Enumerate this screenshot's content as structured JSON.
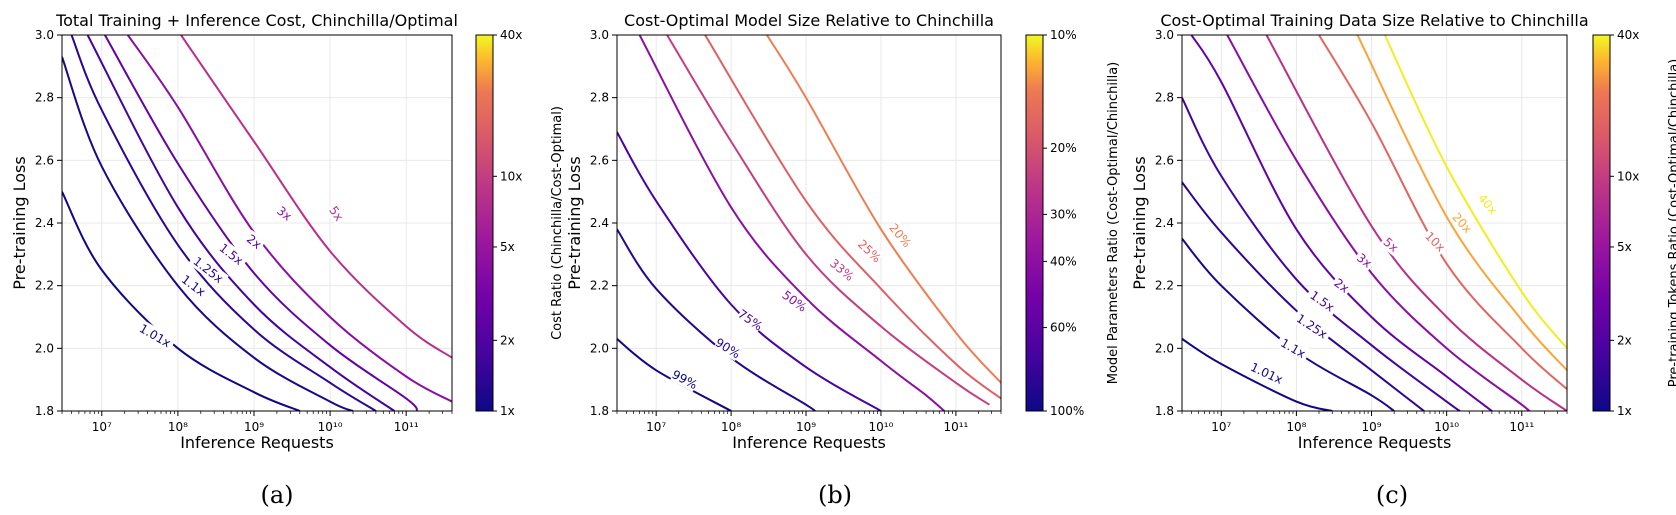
{
  "chart_data": [
    {
      "type": "contour",
      "title": "Total Training + Inference Cost, Chinchilla/Optimal",
      "xlabel": "Inference Requests",
      "ylabel": "Pre-training Loss",
      "x_scale": "log",
      "xlim": [
        3000000,
        400000000000
      ],
      "ylim": [
        1.8,
        3.0
      ],
      "x_ticks": [
        10000000,
        100000000,
        1000000000,
        10000000000,
        100000000000
      ],
      "x_tick_labels": [
        "10^7",
        "10^8",
        "10^9",
        "10^10",
        "10^11"
      ],
      "y_ticks": [
        1.8,
        2.0,
        2.2,
        2.4,
        2.6,
        2.8,
        3.0
      ],
      "y_tick_labels": [
        "1.8",
        "2.0",
        "2.2",
        "2.4",
        "2.6",
        "2.8",
        "3.0"
      ],
      "grid": true,
      "colorbar": {
        "label": "Cost Ratio (Chinchilla/Cost-Optimal)",
        "scale": "log",
        "ticks": [
          1,
          2,
          5,
          10,
          40
        ],
        "tick_labels": [
          "1x",
          "2x",
          "5x",
          "10x",
          "40x"
        ],
        "direction": "up"
      },
      "levels": [
        {
          "label": "1.01x",
          "value": 1.01,
          "curve": [
            [
              3000000,
              2.5
            ],
            [
              10000000,
              2.25
            ],
            [
              100000000,
              2.0
            ],
            [
              1000000000,
              1.86
            ],
            [
              4000000000,
              1.8
            ]
          ],
          "label_at": [
            50000000,
            2.04
          ],
          "label_angle": 30
        },
        {
          "label": "1.1x",
          "value": 1.1,
          "curve": [
            [
              3000000,
              2.93
            ],
            [
              10000000,
              2.58
            ],
            [
              100000000,
              2.2
            ],
            [
              1000000000,
              1.97
            ],
            [
              10000000000,
              1.83
            ],
            [
              20000000000,
              1.8
            ]
          ],
          "label_at": [
            160000000,
            2.2
          ],
          "label_angle": 37
        },
        {
          "label": "1.25x",
          "value": 1.25,
          "curve": [
            [
              4000000,
              3.0
            ],
            [
              10000000,
              2.76
            ],
            [
              100000000,
              2.33
            ],
            [
              1000000000,
              2.06
            ],
            [
              10000000000,
              1.89
            ],
            [
              40000000000,
              1.8
            ]
          ],
          "label_at": [
            250000000,
            2.25
          ],
          "label_angle": 38
        },
        {
          "label": "1.5x",
          "value": 1.5,
          "curve": [
            [
              6500000,
              3.0
            ],
            [
              100000000,
              2.45
            ],
            [
              1000000000,
              2.14
            ],
            [
              10000000000,
              1.94
            ],
            [
              70000000000,
              1.8
            ]
          ],
          "label_at": [
            500000000,
            2.3
          ],
          "label_angle": 38
        },
        {
          "label": "2x",
          "value": 2,
          "curve": [
            [
              11000000,
              3.0
            ],
            [
              100000000,
              2.59
            ],
            [
              1000000000,
              2.24
            ],
            [
              10000000000,
              2.01
            ],
            [
              100000000000,
              1.84
            ],
            [
              140000000000,
              1.8
            ]
          ],
          "label_at": [
            1000000000,
            2.34
          ],
          "label_angle": 38
        },
        {
          "label": "3x",
          "value": 3,
          "curve": [
            [
              22000000,
              3.0
            ],
            [
              100000000,
              2.77
            ],
            [
              1000000000,
              2.37
            ],
            [
              10000000000,
              2.1
            ],
            [
              100000000000,
              1.91
            ],
            [
              400000000000,
              1.83
            ]
          ],
          "label_at": [
            2500000000,
            2.43
          ],
          "label_angle": 38
        },
        {
          "label": "5x",
          "value": 5,
          "curve": [
            [
              110000000,
              3.0
            ],
            [
              1000000000,
              2.66
            ],
            [
              10000000000,
              2.31
            ],
            [
              100000000000,
              2.07
            ],
            [
              400000000000,
              1.97
            ]
          ],
          "label_at": [
            12000000000,
            2.43
          ],
          "label_angle": 55
        }
      ]
    },
    {
      "type": "contour",
      "title": "Cost-Optimal Model Size Relative to Chinchilla",
      "xlabel": "Inference Requests",
      "ylabel": "Pre-training Loss",
      "x_scale": "log",
      "xlim": [
        3000000,
        400000000000
      ],
      "ylim": [
        1.8,
        3.0
      ],
      "x_ticks": [
        10000000,
        100000000,
        1000000000,
        10000000000,
        100000000000
      ],
      "x_tick_labels": [
        "10^7",
        "10^8",
        "10^9",
        "10^10",
        "10^11"
      ],
      "y_ticks": [
        1.8,
        2.0,
        2.2,
        2.4,
        2.6,
        2.8,
        3.0
      ],
      "y_tick_labels": [
        "1.8",
        "2.0",
        "2.2",
        "2.4",
        "2.6",
        "2.8",
        "3.0"
      ],
      "grid": true,
      "colorbar": {
        "label": "Model Parameters Ratio (Cost-Optimal/Chinchilla)",
        "scale": "log",
        "ticks": [
          1.0,
          0.6,
          0.4,
          0.3,
          0.2,
          0.1
        ],
        "tick_labels": [
          "100%",
          "60%",
          "40%",
          "30%",
          "20%",
          "10%"
        ],
        "direction": "down"
      },
      "levels": [
        {
          "label": "99%",
          "value": 0.99,
          "curve": [
            [
              3000000,
              2.03
            ],
            [
              10000000,
              1.93
            ],
            [
              100000000,
              1.8
            ]
          ],
          "label_at": [
            24000000,
            1.9
          ],
          "label_angle": 28
        },
        {
          "label": "90%",
          "value": 0.9,
          "curve": [
            [
              3000000,
              2.38
            ],
            [
              10000000,
              2.19
            ],
            [
              100000000,
              1.97
            ],
            [
              1000000000,
              1.82
            ],
            [
              1300000000,
              1.8
            ]
          ],
          "label_at": [
            90000000,
            2.0
          ],
          "label_angle": 32
        },
        {
          "label": "75%",
          "value": 0.75,
          "curve": [
            [
              3000000,
              2.69
            ],
            [
              10000000,
              2.47
            ],
            [
              100000000,
              2.14
            ],
            [
              1000000000,
              1.94
            ],
            [
              10000000000,
              1.8
            ]
          ],
          "label_at": [
            180000000,
            2.09
          ],
          "label_angle": 35
        },
        {
          "label": "50%",
          "value": 0.5,
          "curve": [
            [
              6000000,
              3.0
            ],
            [
              100000000,
              2.45
            ],
            [
              1000000000,
              2.16
            ],
            [
              10000000000,
              1.96
            ],
            [
              40000000000,
              1.85
            ],
            [
              70000000000,
              1.8
            ]
          ],
          "label_at": [
            700000000,
            2.15
          ],
          "label_angle": 36
        },
        {
          "label": "33%",
          "value": 0.33,
          "curve": [
            [
              14000000,
              3.0
            ],
            [
              100000000,
              2.66
            ],
            [
              1000000000,
              2.3
            ],
            [
              10000000000,
              2.07
            ],
            [
              100000000000,
              1.89
            ],
            [
              280000000000,
              1.82
            ]
          ],
          "label_at": [
            3000000000,
            2.25
          ],
          "label_angle": 40
        },
        {
          "label": "25%",
          "value": 0.25,
          "curve": [
            [
              45000000,
              3.0
            ],
            [
              1000000000,
              2.47
            ],
            [
              10000000000,
              2.19
            ],
            [
              100000000000,
              1.95
            ],
            [
              400000000000,
              1.84
            ]
          ],
          "label_at": [
            7000000000,
            2.31
          ],
          "label_angle": 44
        },
        {
          "label": "20%",
          "value": 0.2,
          "curve": [
            [
              300000000,
              3.0
            ],
            [
              1000000000,
              2.8
            ],
            [
              10000000000,
              2.38
            ],
            [
              100000000000,
              2.05
            ],
            [
              400000000000,
              1.89
            ]
          ],
          "label_at": [
            18000000000,
            2.36
          ],
          "label_angle": 50
        }
      ]
    },
    {
      "type": "contour",
      "title": "Cost-Optimal Training Data Size Relative to Chinchilla",
      "xlabel": "Inference Requests",
      "ylabel": "Pre-training Loss",
      "x_scale": "log",
      "xlim": [
        3000000,
        400000000000
      ],
      "ylim": [
        1.8,
        3.0
      ],
      "x_ticks": [
        10000000,
        100000000,
        1000000000,
        10000000000,
        100000000000
      ],
      "x_tick_labels": [
        "10^7",
        "10^8",
        "10^9",
        "10^10",
        "10^11"
      ],
      "y_ticks": [
        1.8,
        2.0,
        2.2,
        2.4,
        2.6,
        2.8,
        3.0
      ],
      "y_tick_labels": [
        "1.8",
        "2.0",
        "2.2",
        "2.4",
        "2.6",
        "2.8",
        "3.0"
      ],
      "grid": true,
      "colorbar": {
        "label": "Pre-training Tokens Ratio (Cost-Optimal/Chinchilla)",
        "scale": "log",
        "ticks": [
          1,
          2,
          5,
          10,
          40
        ],
        "tick_labels": [
          "1x",
          "2x",
          "5x",
          "10x",
          "40x"
        ],
        "direction": "up"
      },
      "levels": [
        {
          "label": "1.01x",
          "value": 1.01,
          "curve": [
            [
              3000000,
              2.03
            ],
            [
              10000000,
              1.95
            ],
            [
              100000000,
              1.83
            ],
            [
              300000000,
              1.8
            ]
          ],
          "label_at": [
            40000000,
            1.92
          ],
          "label_angle": 25
        },
        {
          "label": "1.1x",
          "value": 1.1,
          "curve": [
            [
              3000000,
              2.35
            ],
            [
              10000000,
              2.2
            ],
            [
              100000000,
              1.99
            ],
            [
              1000000000,
              1.85
            ],
            [
              2000000000,
              1.8
            ]
          ],
          "label_at": [
            90000000,
            2.0
          ],
          "label_angle": 30
        },
        {
          "label": "1.25x",
          "value": 1.25,
          "curve": [
            [
              3000000,
              2.53
            ],
            [
              10000000,
              2.37
            ],
            [
              100000000,
              2.12
            ],
            [
              1000000000,
              1.93
            ],
            [
              5000000000,
              1.8
            ]
          ],
          "label_at": [
            160000000,
            2.07
          ],
          "label_angle": 33
        },
        {
          "label": "1.5x",
          "value": 1.5,
          "curve": [
            [
              3000000,
              2.8
            ],
            [
              10000000,
              2.55
            ],
            [
              100000000,
              2.22
            ],
            [
              1000000000,
              2.01
            ],
            [
              10000000000,
              1.83
            ],
            [
              15000000000,
              1.8
            ]
          ],
          "label_at": [
            220000000,
            2.15
          ],
          "label_angle": 35
        },
        {
          "label": "2x",
          "value": 2,
          "curve": [
            [
              4000000,
              3.0
            ],
            [
              10000000,
              2.85
            ],
            [
              100000000,
              2.38
            ],
            [
              1000000000,
              2.1
            ],
            [
              10000000000,
              1.91
            ],
            [
              40000000000,
              1.8
            ]
          ],
          "label_at": [
            400000000,
            2.2
          ],
          "label_angle": 37
        },
        {
          "label": "3x",
          "value": 3,
          "curve": [
            [
              12000000,
              3.0
            ],
            [
              100000000,
              2.6
            ],
            [
              1000000000,
              2.24
            ],
            [
              10000000000,
              2.0
            ],
            [
              100000000000,
              1.82
            ],
            [
              120000000000,
              1.8
            ]
          ],
          "label_at": [
            800000000,
            2.28
          ],
          "label_angle": 38
        },
        {
          "label": "5x",
          "value": 5,
          "curve": [
            [
              40000000,
              3.0
            ],
            [
              1000000000,
              2.39
            ],
            [
              10000000000,
              2.1
            ],
            [
              100000000000,
              1.9
            ],
            [
              400000000000,
              1.8
            ]
          ],
          "label_at": [
            1800000000,
            2.33
          ],
          "label_angle": 40
        },
        {
          "label": "10x",
          "value": 10,
          "curve": [
            [
              200000000,
              3.0
            ],
            [
              1000000000,
              2.72
            ],
            [
              10000000000,
              2.27
            ],
            [
              100000000000,
              2.0
            ],
            [
              400000000000,
              1.87
            ]
          ],
          "label_at": [
            7000000000,
            2.34
          ],
          "label_angle": 45
        },
        {
          "label": "20x",
          "value": 20,
          "curve": [
            [
              650000000,
              3.0
            ],
            [
              10000000000,
              2.42
            ],
            [
              100000000000,
              2.09
            ],
            [
              400000000000,
              1.93
            ]
          ],
          "label_at": [
            16000000000,
            2.4
          ],
          "label_angle": 48
        },
        {
          "label": "40x",
          "value": 40,
          "curve": [
            [
              1500000000,
              3.0
            ],
            [
              10000000000,
              2.58
            ],
            [
              100000000000,
              2.18
            ],
            [
              400000000000,
              2.0
            ]
          ],
          "label_at": [
            35000000000,
            2.46
          ],
          "label_angle": 50
        }
      ]
    }
  ],
  "captions": [
    "(a)",
    "(b)",
    "(c)"
  ]
}
